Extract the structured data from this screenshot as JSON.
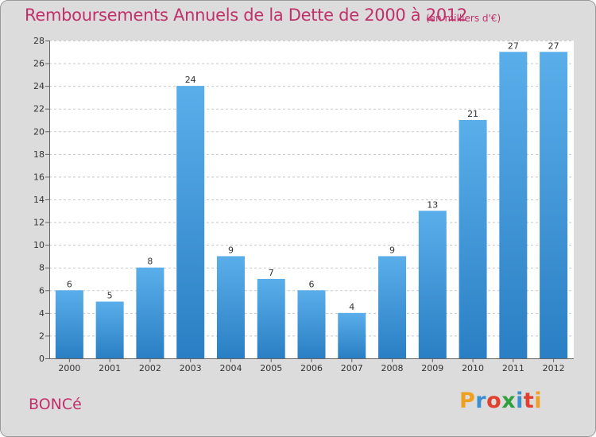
{
  "header": {
    "title": "Remboursements Annuels de la Dette de 2000 à 2012",
    "subtitle": "(en milliers d'€)"
  },
  "footer": {
    "commune": "BONCé",
    "logo_text": "Proxiti"
  },
  "colors": {
    "title": "#c0306a",
    "bar_light": "#5aaeea",
    "bar_dark": "#2a7fc4",
    "background": "#dcdcdc",
    "plot": "#ffffff",
    "logo": [
      "#f0a020",
      "#3a8fd0",
      "#e04030",
      "#30a040",
      "#3a8fd0",
      "#e04030",
      "#f0a020"
    ]
  },
  "chart_data": {
    "type": "bar",
    "categories": [
      "2000",
      "2001",
      "2002",
      "2003",
      "2004",
      "2005",
      "2006",
      "2007",
      "2008",
      "2009",
      "2010",
      "2011",
      "2012"
    ],
    "values": [
      6,
      5,
      8,
      24,
      9,
      7,
      6,
      4,
      9,
      13,
      21,
      27,
      27
    ],
    "data_labels": [
      "6",
      "5",
      "8",
      "24",
      "9",
      "7",
      "6",
      "4",
      "9",
      "13",
      "21",
      "27",
      "27"
    ],
    "ylim": [
      0,
      28
    ],
    "yticks": [
      0,
      2,
      4,
      6,
      8,
      10,
      12,
      14,
      16,
      18,
      20,
      22,
      24,
      26,
      28
    ],
    "ytick_labels": [
      "0",
      "2",
      "4",
      "6",
      "8",
      "10",
      "12",
      "14",
      "16",
      "18",
      "20",
      "22",
      "24",
      "26",
      "28"
    ],
    "xlabel": "",
    "ylabel": "",
    "grid": true,
    "legend": "none"
  }
}
